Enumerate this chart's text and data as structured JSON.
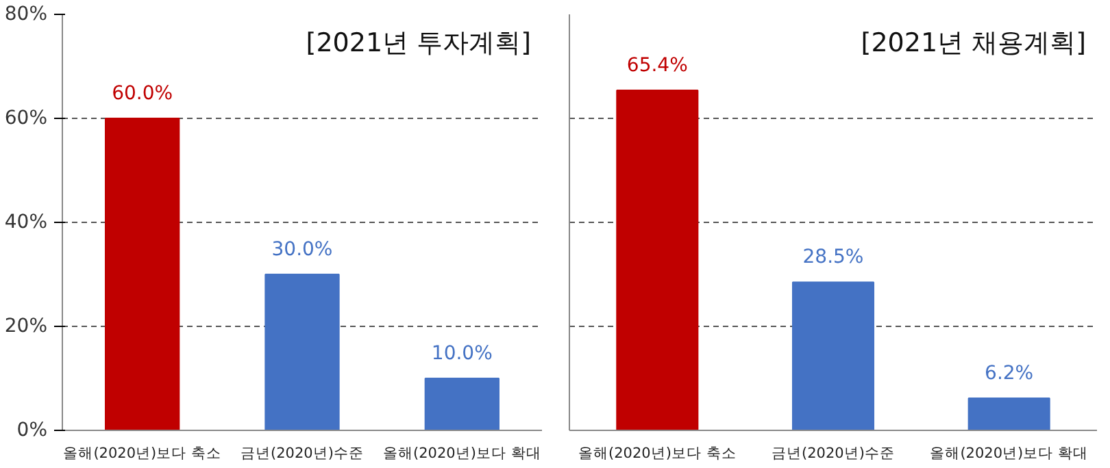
{
  "chart_data": [
    {
      "type": "bar",
      "title": "[2021년 투자계획]",
      "categories": [
        "올해(2020년)보다 축소",
        "금년(2020년)수준",
        "올해(2020년)보다 확대"
      ],
      "values": [
        60.0,
        30.0,
        10.0
      ],
      "colors": [
        "#c00000",
        "#4472c4",
        "#4472c4"
      ],
      "value_labels": [
        "60.0%",
        "30.0%",
        "10.0%"
      ],
      "ylim": [
        0,
        80
      ],
      "yticks": [
        {
          "value": 0,
          "label": "0%"
        },
        {
          "value": 20,
          "label": "20%"
        },
        {
          "value": 40,
          "label": "40%"
        },
        {
          "value": 60,
          "label": "60%"
        },
        {
          "value": 80,
          "label": "80%"
        }
      ],
      "grid": "y",
      "line_style": "dashed"
    },
    {
      "type": "bar",
      "title": "[2021년 채용계획]",
      "categories": [
        "올해(2020년)보다 축소",
        "금년(2020년)수준",
        "올해(2020년)보다 확대"
      ],
      "values": [
        65.4,
        28.5,
        6.2
      ],
      "colors": [
        "#c00000",
        "#4472c4",
        "#4472c4"
      ],
      "value_labels": [
        "65.4%",
        "28.5%",
        "6.2%"
      ],
      "ylim": [
        0,
        80
      ],
      "yticks": [
        {
          "value": 0,
          "label": null
        },
        {
          "value": 20,
          "label": null
        },
        {
          "value": 40,
          "label": null
        },
        {
          "value": 60,
          "label": null
        },
        {
          "value": 80,
          "label": null
        }
      ],
      "grid": "y",
      "line_style": "dashed",
      "tick_labels": "x"
    }
  ]
}
